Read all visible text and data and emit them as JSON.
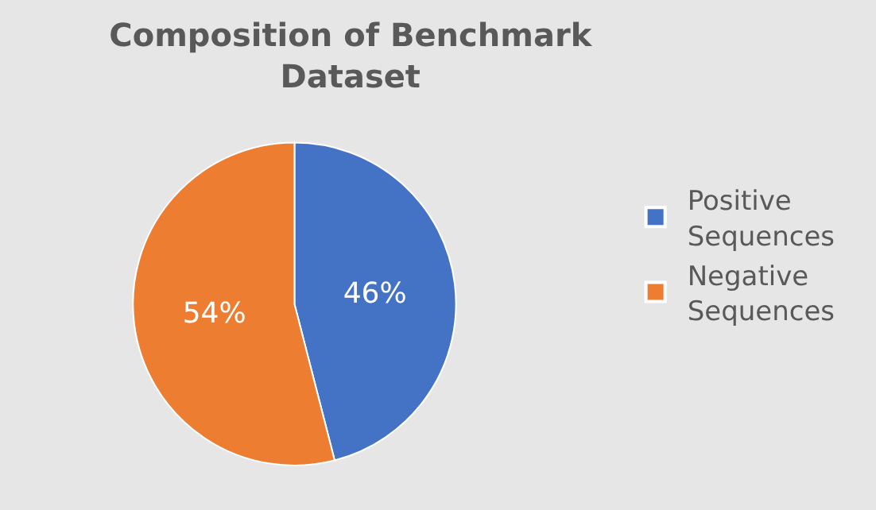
{
  "chart_data": {
    "type": "pie",
    "title": "Composition of Benchmark Dataset",
    "categories": [
      "Positive Sequences",
      "Negative Sequences"
    ],
    "values": [
      46,
      54
    ],
    "colors": [
      "#4472c4",
      "#ed7d31"
    ],
    "value_labels": [
      "46%",
      "54%"
    ],
    "legend": "right"
  }
}
